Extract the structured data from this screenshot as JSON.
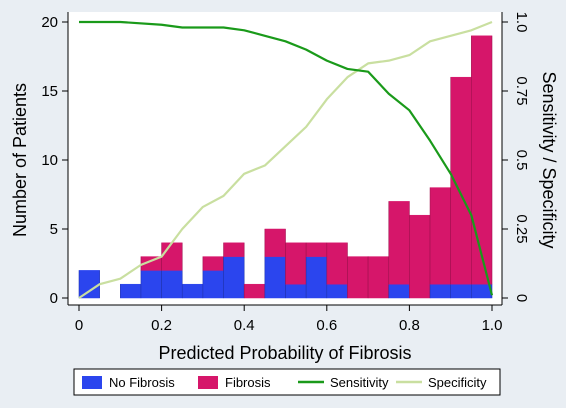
{
  "chart_data": {
    "type": "bar",
    "xlabel": "Predicted Probability of Fibrosis",
    "ylabel": "Number of Patients",
    "y2label": "Sensitivity / Specificity",
    "xlim": [
      0,
      1
    ],
    "ylim": [
      0,
      20.5
    ],
    "y2lim": [
      0,
      1.025
    ],
    "xticks": [
      0,
      0.2,
      0.4,
      0.6,
      0.8,
      1
    ],
    "xtick_labels": [
      "0",
      "0.2",
      "0.4",
      "0.6",
      "0.8",
      "1.0"
    ],
    "yticks": [
      0,
      5,
      10,
      15,
      20
    ],
    "ytick_labels": [
      "0",
      "5",
      "10",
      "15",
      "20"
    ],
    "y2ticks": [
      0,
      0.25,
      0.5,
      0.75,
      1
    ],
    "y2tick_labels": [
      "0",
      "0.25",
      "0.5",
      "0.75",
      "1.0"
    ],
    "bin_width": 0.05,
    "bins": [
      0,
      0.05,
      0.1,
      0.15,
      0.2,
      0.25,
      0.3,
      0.35,
      0.4,
      0.45,
      0.5,
      0.55,
      0.6,
      0.65,
      0.7,
      0.75,
      0.8,
      0.85,
      0.9,
      0.95
    ],
    "series": [
      {
        "name": "No Fibrosis",
        "values": [
          2,
          0,
          1,
          2,
          2,
          1,
          2,
          3,
          0,
          3,
          1,
          3,
          1,
          0,
          0,
          1,
          0,
          1,
          1,
          1
        ],
        "color": "#2b45ee"
      },
      {
        "name": "Fibrosis",
        "values": [
          0,
          0,
          0,
          1,
          2,
          0,
          1,
          1,
          1,
          2,
          3,
          1,
          3,
          3,
          3,
          6,
          6,
          7,
          15,
          18
        ],
        "color": "#d6166a"
      }
    ],
    "lines": [
      {
        "name": "Sensitivity",
        "color": "#1a9a1a",
        "x": [
          0,
          0.05,
          0.1,
          0.2,
          0.25,
          0.3,
          0.35,
          0.4,
          0.45,
          0.5,
          0.55,
          0.6,
          0.65,
          0.7,
          0.75,
          0.8,
          0.85,
          0.9,
          0.95,
          1.0
        ],
        "y": [
          1.0,
          1.0,
          1.0,
          0.99,
          0.98,
          0.98,
          0.98,
          0.97,
          0.95,
          0.93,
          0.9,
          0.86,
          0.83,
          0.82,
          0.74,
          0.68,
          0.57,
          0.45,
          0.3,
          0.01
        ]
      },
      {
        "name": "Specificity",
        "color": "#c9dfa0",
        "x": [
          0,
          0.05,
          0.1,
          0.15,
          0.2,
          0.25,
          0.3,
          0.35,
          0.4,
          0.45,
          0.5,
          0.55,
          0.6,
          0.65,
          0.7,
          0.75,
          0.8,
          0.85,
          0.9,
          0.95,
          1.0
        ],
        "y": [
          0.0,
          0.05,
          0.07,
          0.12,
          0.15,
          0.25,
          0.33,
          0.37,
          0.45,
          0.48,
          0.55,
          0.62,
          0.72,
          0.8,
          0.85,
          0.86,
          0.88,
          0.93,
          0.95,
          0.97,
          1.0
        ]
      }
    ],
    "legend_position": "bottom",
    "grid": false
  }
}
